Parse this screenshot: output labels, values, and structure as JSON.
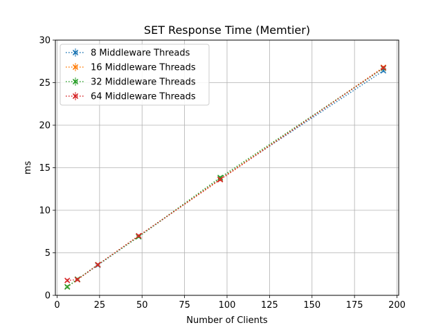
{
  "chart_data": {
    "type": "line",
    "title": "SET Response Time (Memtier)",
    "xlabel": "Number of Clients",
    "ylabel": "ms",
    "xlim": [
      -1,
      201
    ],
    "ylim": [
      0,
      30
    ],
    "xticks": [
      0,
      25,
      50,
      75,
      100,
      125,
      150,
      175,
      200
    ],
    "yticks": [
      0,
      5,
      10,
      15,
      20,
      25,
      30
    ],
    "grid": true,
    "legend_position": "top-left",
    "series": [
      {
        "name": "8 Middleware Threads",
        "color": "#1f77b4",
        "x": [
          6,
          12,
          24,
          48,
          96,
          192
        ],
        "y": [
          1.0,
          1.85,
          3.55,
          6.9,
          13.7,
          26.4
        ]
      },
      {
        "name": "16 Middleware Threads",
        "color": "#ff7f0e",
        "x": [
          6,
          12,
          24,
          48,
          96,
          192
        ],
        "y": [
          1.0,
          1.85,
          3.6,
          6.95,
          13.65,
          26.8
        ]
      },
      {
        "name": "32 Middleware Threads",
        "color": "#2ca02c",
        "x": [
          6,
          12,
          24,
          48,
          96,
          192
        ],
        "y": [
          1.0,
          1.9,
          3.6,
          6.9,
          13.85,
          26.7
        ]
      },
      {
        "name": "64 Middleware Threads",
        "color": "#d62728",
        "x": [
          6,
          12,
          24,
          48,
          96,
          192
        ],
        "y": [
          1.75,
          1.85,
          3.6,
          7.0,
          13.6,
          26.75
        ]
      }
    ]
  }
}
